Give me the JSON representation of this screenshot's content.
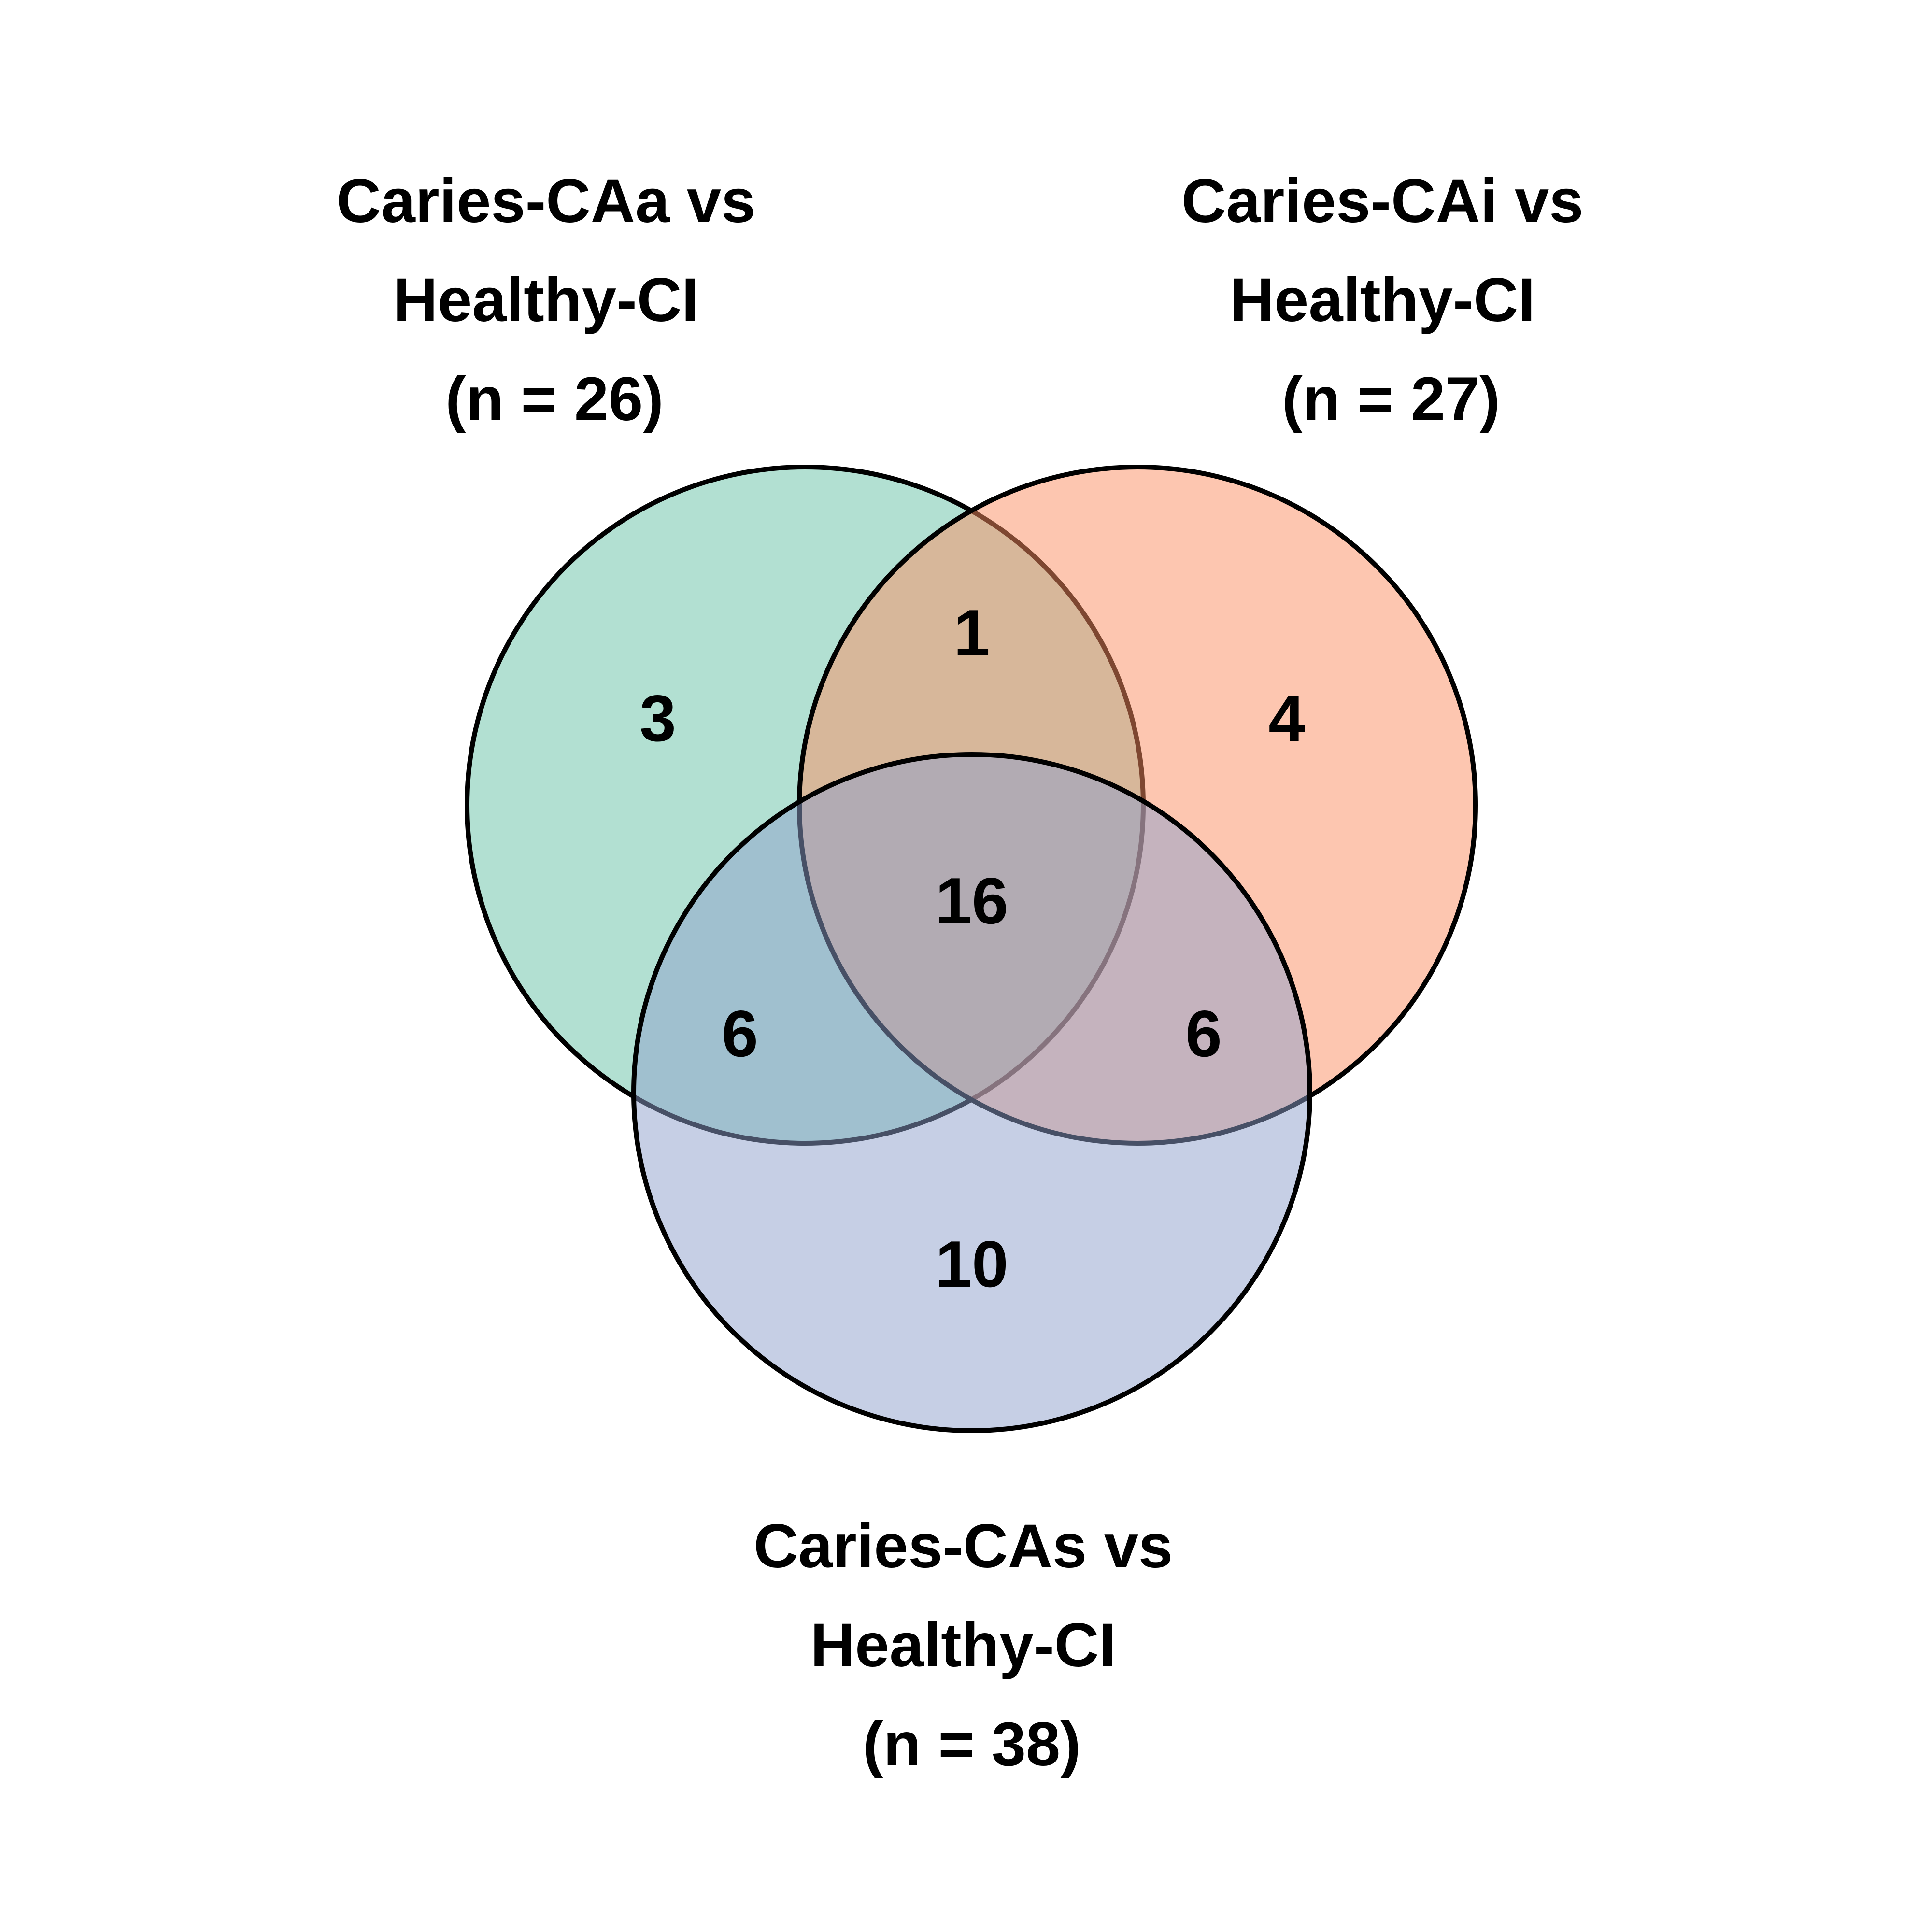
{
  "sets": [
    {
      "id": "A",
      "label_lines": [
        "Caries-CAa vs",
        "Healthy-CI",
        "(n = 26)"
      ],
      "color": "#66c2a5"
    },
    {
      "id": "B",
      "label_lines": [
        "Caries-CAi vs",
        "Healthy-CI",
        "(n = 27)"
      ],
      "color": "#fc8d62"
    },
    {
      "id": "C",
      "label_lines": [
        "Caries-CAs vs",
        "Healthy-CI",
        "(n = 38)"
      ],
      "color": "#8da0cb"
    }
  ],
  "regions": {
    "A_only": "3",
    "B_only": "4",
    "C_only": "10",
    "A_and_B": "1",
    "A_and_C": "6",
    "B_and_C": "6",
    "A_B_C": "16"
  },
  "outline_color": "#000000"
}
